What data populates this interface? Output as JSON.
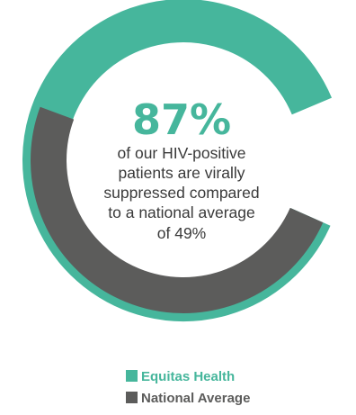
{
  "chart_data": {
    "type": "pie",
    "style": "concentric-rings",
    "series": [
      {
        "name": "Equitas Health",
        "value": 87,
        "unit": "%",
        "color": "#46b69c"
      },
      {
        "name": "National Average",
        "value": 49,
        "unit": "%",
        "color": "#5c5c5b"
      }
    ]
  },
  "callout": {
    "value": "87%",
    "caption": [
      "of our HIV-positive",
      "patients are virally",
      "suppressed compared",
      "to a national average",
      "of 49%"
    ]
  },
  "legend": [
    {
      "label": "Equitas Health",
      "color": "#46b69c"
    },
    {
      "label": "National Average",
      "color": "#5c5c5b"
    }
  ],
  "colors": {
    "accent": "#46b69c",
    "secondary": "#5c5c5b",
    "text": "#3a3a3a"
  }
}
